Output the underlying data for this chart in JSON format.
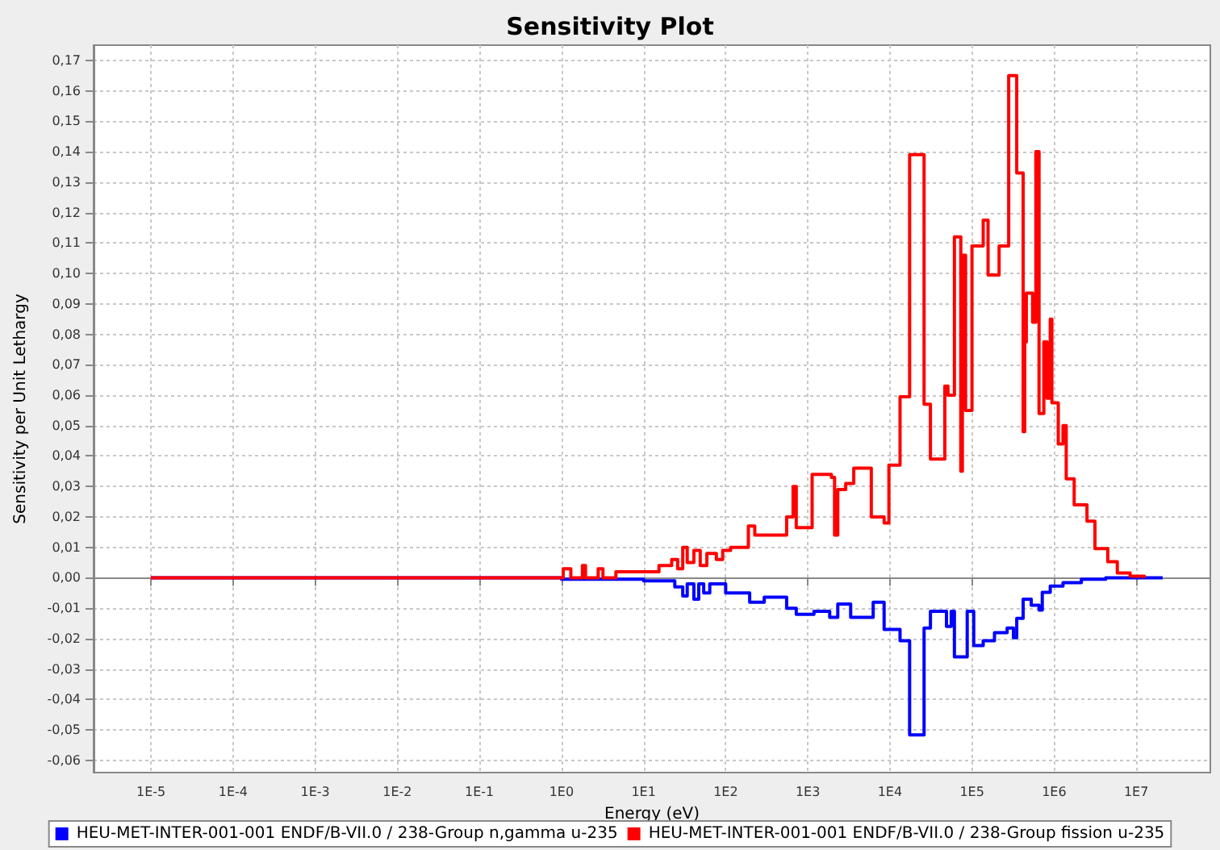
{
  "chart_data": {
    "type": "step",
    "title": "Sensitivity Plot",
    "xlabel": "Energy (eV)",
    "ylabel": "Sensitivity per Unit Lethargy",
    "log": "x",
    "grid": true,
    "legend": "bottom",
    "marker": "none",
    "line_style": "solid",
    "xlim": [
      2e-06,
      80000000.0
    ],
    "xticks": [
      {
        "value": 1e-05,
        "label": "1E-5"
      },
      {
        "value": 0.0001,
        "label": "1E-4"
      },
      {
        "value": 0.001,
        "label": "1E-3"
      },
      {
        "value": 0.01,
        "label": "1E-2"
      },
      {
        "value": 0.1,
        "label": "1E-1"
      },
      {
        "value": 1,
        "label": "1E0"
      },
      {
        "value": 10,
        "label": "1E1"
      },
      {
        "value": 100,
        "label": "1E2"
      },
      {
        "value": 1000,
        "label": "1E3"
      },
      {
        "value": 10000,
        "label": "1E4"
      },
      {
        "value": 100000,
        "label": "1E5"
      },
      {
        "value": 1000000,
        "label": "1E6"
      },
      {
        "value": 10000000,
        "label": "1E7"
      }
    ],
    "ylim": [
      -0.064,
      0.175
    ],
    "yticks": [
      {
        "value": -0.06,
        "label": "-0,06"
      },
      {
        "value": -0.05,
        "label": "-0,05"
      },
      {
        "value": -0.04,
        "label": "-0,04"
      },
      {
        "value": -0.03,
        "label": "-0,03"
      },
      {
        "value": -0.02,
        "label": "-0,02"
      },
      {
        "value": -0.01,
        "label": "-0,01"
      },
      {
        "value": 0,
        "label": "0,00"
      },
      {
        "value": 0.01,
        "label": "0,01"
      },
      {
        "value": 0.02,
        "label": "0,02"
      },
      {
        "value": 0.03,
        "label": "0,03"
      },
      {
        "value": 0.04,
        "label": "0,04"
      },
      {
        "value": 0.05,
        "label": "0,05"
      },
      {
        "value": 0.06,
        "label": "0,06"
      },
      {
        "value": 0.07,
        "label": "0,07"
      },
      {
        "value": 0.08,
        "label": "0,08"
      },
      {
        "value": 0.09,
        "label": "0,09"
      },
      {
        "value": 0.1,
        "label": "0,10"
      },
      {
        "value": 0.11,
        "label": "0,11"
      },
      {
        "value": 0.12,
        "label": "0,12"
      },
      {
        "value": 0.13,
        "label": "0,13"
      },
      {
        "value": 0.14,
        "label": "0,14"
      },
      {
        "value": 0.15,
        "label": "0,15"
      },
      {
        "value": 0.16,
        "label": "0,16"
      },
      {
        "value": 0.17,
        "label": "0,17"
      }
    ],
    "series": [
      {
        "name": "HEU-MET-INTER-001-001 ENDF/B-VII.0 / 238-Group n,gamma u-235",
        "color": "#0000ff",
        "x": [
          1e-05,
          1,
          10,
          24,
          30,
          34,
          41,
          47,
          54,
          64,
          100,
          196,
          295,
          553,
          724,
          1190,
          1850,
          2320,
          3330,
          6260,
          8510,
          13300,
          17400,
          26100,
          31200,
          48900,
          55900,
          61100,
          87500,
          105000,
          137000,
          188000,
          268000,
          320000,
          351000,
          420000,
          527000,
          656000,
          718000,
          898000,
          1285000,
          2150000,
          4260000,
          21000000
        ],
        "values": [
          0,
          -0.0005,
          -0.001,
          -0.003,
          -0.006,
          -0.002,
          -0.007,
          -0.002,
          -0.005,
          -0.002,
          -0.005,
          -0.008,
          -0.0064,
          -0.01,
          -0.012,
          -0.011,
          -0.013,
          -0.0086,
          -0.013,
          -0.008,
          -0.017,
          -0.0207,
          -0.0516,
          -0.0165,
          -0.011,
          -0.016,
          -0.011,
          -0.026,
          -0.011,
          -0.0223,
          -0.0207,
          -0.018,
          -0.0165,
          -0.0197,
          -0.0133,
          -0.007,
          -0.009,
          -0.0106,
          -0.0048,
          -0.0027,
          -0.0016,
          -0.0005,
          0,
          0
        ]
      },
      {
        "name": "HEU-MET-INTER-001-001 ENDF/B-VII.0 / 238-Group fission u-235",
        "color": "#ff0000",
        "x": [
          1e-05,
          1,
          1.05,
          1.3,
          1.8,
          1.96,
          2.8,
          3.2,
          4.6,
          7.9,
          10,
          15.4,
          22,
          26,
          30,
          34,
          41,
          49,
          59,
          77,
          92,
          115,
          189,
          226,
          553,
          662,
          724,
          1130,
          1940,
          2120,
          2320,
          2900,
          3630,
          5940,
          8510,
          9730,
          13300,
          17400,
          26100,
          31200,
          46700,
          51000,
          61100,
          73100,
          76400,
          83600,
          100000,
          137000,
          157000,
          214000,
          280000,
          351000,
          420000,
          439000,
          459000,
          548000,
          600000,
          656000,
          750000,
          820000,
          898000,
          940000,
          1125000,
          1285000,
          1406000,
          1758000,
          2517000,
          3148000,
          4508000,
          5890000,
          8440000,
          12600000
        ],
        "values": [
          0,
          0,
          0.003,
          0,
          0.004,
          0,
          0.003,
          0,
          0.002,
          0.002,
          0.002,
          0.004,
          0.006,
          0.003,
          0.01,
          0.005,
          0.009,
          0.004,
          0.008,
          0.006,
          0.009,
          0.01,
          0.017,
          0.014,
          0.02,
          0.03,
          0.0165,
          0.034,
          0.033,
          0.014,
          0.029,
          0.031,
          0.036,
          0.02,
          0.018,
          0.037,
          0.0595,
          0.139,
          0.057,
          0.039,
          0.063,
          0.06,
          0.112,
          0.035,
          0.106,
          0.055,
          0.109,
          0.1175,
          0.0995,
          0.109,
          0.165,
          0.133,
          0.048,
          0.0775,
          0.0935,
          0.084,
          0.14,
          0.054,
          0.0775,
          0.059,
          0.085,
          0.0575,
          0.044,
          0.05,
          0.0325,
          0.024,
          0.0186,
          0.0096,
          0.0053,
          0.0016,
          0.0005,
          0
        ]
      }
    ]
  }
}
